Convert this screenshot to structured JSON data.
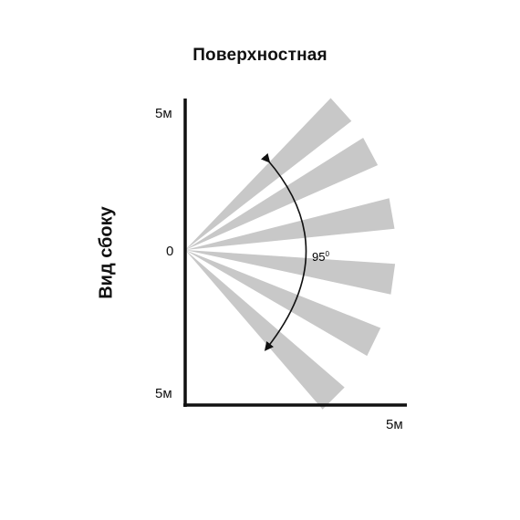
{
  "title": "Поверхностная",
  "side_view_label": "Вид сбоку",
  "axis": {
    "top_label": "5м",
    "zero_label": "0",
    "bottom_label": "5м",
    "right_label": "5м"
  },
  "angle": {
    "value": "95",
    "unit": "0"
  },
  "colors": {
    "beam": "#c8c8c8",
    "axis": "#111111",
    "arrow": "#111111"
  },
  "beams": [
    {
      "angle_deg": -42
    },
    {
      "angle_deg": -28
    },
    {
      "angle_deg": -10
    },
    {
      "angle_deg": 8
    },
    {
      "angle_deg": 26
    },
    {
      "angle_deg": 45
    }
  ]
}
